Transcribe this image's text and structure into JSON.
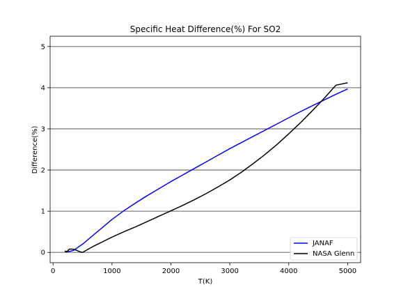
{
  "chart_data": {
    "type": "line",
    "title": "Specific Heat Difference(%) For SO2",
    "xlabel": "T(K)",
    "ylabel": "Difference(%)",
    "xlim": [
      -50,
      5220
    ],
    "ylim": [
      -0.25,
      5.25
    ],
    "xticks": [
      0,
      1000,
      2000,
      3000,
      4000,
      5000
    ],
    "xtick_labels": [
      "0",
      "1000",
      "2000",
      "3000",
      "4000",
      "5000"
    ],
    "yticks": [
      0,
      1,
      2,
      3,
      4,
      5
    ],
    "ytick_labels": [
      "0",
      "1",
      "2",
      "3",
      "4",
      "5"
    ],
    "grid": "horizontal",
    "legend_position": "lower-right",
    "series": [
      {
        "name": "JANAF",
        "color": "#0000ff",
        "x": [
          200,
          250,
          298,
          350,
          400,
          500,
          600,
          700,
          800,
          900,
          1000,
          1200,
          1400,
          1600,
          1800,
          2000,
          2200,
          2400,
          2600,
          2800,
          3000,
          3200,
          3400,
          3600,
          3800,
          4000,
          4200,
          4400,
          4600,
          4800,
          5000
        ],
        "y": [
          0.03,
          0.02,
          0.03,
          0.05,
          0.1,
          0.2,
          0.32,
          0.44,
          0.56,
          0.68,
          0.8,
          1.01,
          1.2,
          1.38,
          1.55,
          1.72,
          1.88,
          2.04,
          2.2,
          2.36,
          2.52,
          2.67,
          2.82,
          2.97,
          3.12,
          3.27,
          3.42,
          3.56,
          3.7,
          3.84,
          3.97
        ]
      },
      {
        "name": "NASA Glenn",
        "color": "#000000",
        "x": [
          200,
          220,
          240,
          260,
          280,
          300,
          330,
          360,
          400,
          450,
          500,
          600,
          700,
          800,
          900,
          1000,
          1200,
          1400,
          1600,
          1800,
          2000,
          2200,
          2400,
          2600,
          2800,
          3000,
          3200,
          3400,
          3600,
          3800,
          4000,
          4200,
          4400,
          4600,
          4800,
          5000
        ],
        "y": [
          0.04,
          0.01,
          0.02,
          0.06,
          0.08,
          0.08,
          0.08,
          0.07,
          0.05,
          0.02,
          0.0,
          0.08,
          0.16,
          0.23,
          0.3,
          0.37,
          0.5,
          0.62,
          0.75,
          0.88,
          1.01,
          1.14,
          1.28,
          1.43,
          1.59,
          1.76,
          1.95,
          2.16,
          2.38,
          2.62,
          2.88,
          3.15,
          3.44,
          3.74,
          4.06,
          4.12
        ]
      }
    ]
  }
}
